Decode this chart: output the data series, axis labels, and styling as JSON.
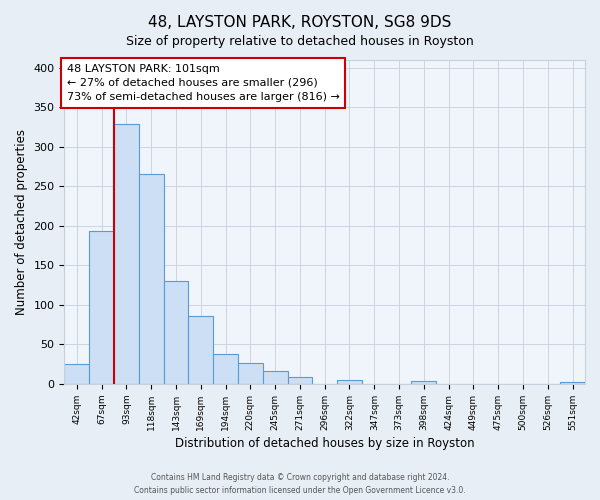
{
  "title": "48, LAYSTON PARK, ROYSTON, SG8 9DS",
  "subtitle": "Size of property relative to detached houses in Royston",
  "xlabel": "Distribution of detached houses by size in Royston",
  "ylabel": "Number of detached properties",
  "bin_labels": [
    "42sqm",
    "67sqm",
    "93sqm",
    "118sqm",
    "143sqm",
    "169sqm",
    "194sqm",
    "220sqm",
    "245sqm",
    "271sqm",
    "296sqm",
    "322sqm",
    "347sqm",
    "373sqm",
    "398sqm",
    "424sqm",
    "449sqm",
    "475sqm",
    "500sqm",
    "526sqm",
    "551sqm"
  ],
  "bar_heights": [
    25,
    193,
    329,
    266,
    130,
    86,
    38,
    26,
    17,
    9,
    0,
    5,
    0,
    0,
    4,
    0,
    0,
    0,
    0,
    0,
    2
  ],
  "bar_color": "#ccdff5",
  "bar_edge_color": "#5b9bd5",
  "vline_bin_index": 2,
  "vline_color": "#cc0000",
  "annotation_line1": "48 LAYSTON PARK: 101sqm",
  "annotation_line2": "← 27% of detached houses are smaller (296)",
  "annotation_line3": "73% of semi-detached houses are larger (816) →",
  "annotation_box_edge": "#cc0000",
  "annotation_box_bg": "#ffffff",
  "ylim": [
    0,
    410
  ],
  "yticks": [
    0,
    50,
    100,
    150,
    200,
    250,
    300,
    350,
    400
  ],
  "footer1": "Contains HM Land Registry data © Crown copyright and database right 2024.",
  "footer2": "Contains public sector information licensed under the Open Government Licence v3.0.",
  "bg_color": "#e8eef6",
  "plot_bg_color": "#f0f4fb",
  "grid_color": "#c8d0de"
}
